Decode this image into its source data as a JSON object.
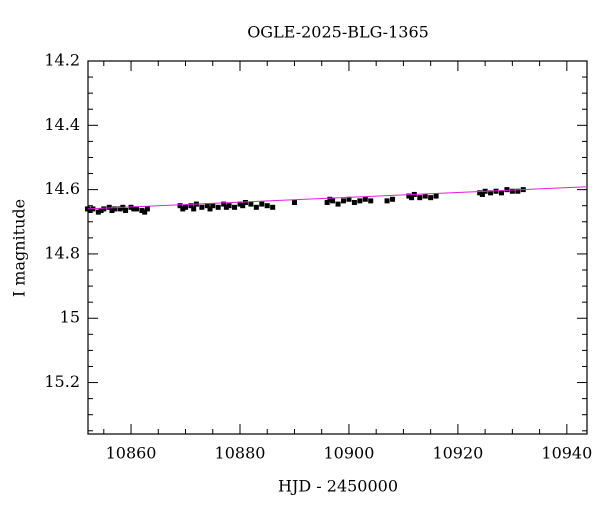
{
  "chart_data": {
    "type": "scatter",
    "title": "OGLE-2025-BLG-1365",
    "x_label": "HJD - 2450000",
    "y_label": "I magnitude",
    "xlim": [
      10852.1,
      10943.7
    ],
    "ylim": [
      14.2,
      15.36
    ],
    "y_inverted": true,
    "xticks": [
      10860,
      10880,
      10900,
      10920,
      10940
    ],
    "yticks": [
      14.2,
      14.4,
      14.6,
      14.8,
      15,
      15.2
    ],
    "xminorticks": [
      10855,
      10865,
      10870,
      10875,
      10885,
      10890,
      10895,
      10905,
      10910,
      10915,
      10925,
      10930,
      10935
    ],
    "yminorticks": [
      14.25,
      14.3,
      14.35,
      14.45,
      14.5,
      14.55,
      14.65,
      14.7,
      14.75,
      14.85,
      14.9,
      14.95,
      15.05,
      15.1,
      15.15,
      15.25,
      15.3,
      15.35
    ],
    "series": [
      {
        "type": "scatter",
        "color": "#000000",
        "x": [
          10852,
          10852.5,
          10853,
          10854,
          10854.5,
          10855,
          10856,
          10856.5,
          10857,
          10858,
          10858.5,
          10859,
          10860,
          10860.5,
          10861,
          10862,
          10862.5,
          10863,
          10869,
          10869.5,
          10870,
          10871,
          10871.5,
          10872,
          10873,
          10874,
          10874.5,
          10875,
          10876,
          10877,
          10877.5,
          10878,
          10879,
          10880,
          10880.5,
          10881,
          10882,
          10883,
          10884,
          10885,
          10886,
          10890,
          10896,
          10896.5,
          10897,
          10898,
          10899,
          10900,
          10901,
          10902,
          10903,
          10904,
          10907,
          10908,
          10911,
          10911.5,
          10912,
          10913,
          10914,
          10915,
          10916,
          10924,
          10924.5,
          10925,
          10926,
          10927,
          10928,
          10929,
          10930,
          10931,
          10932
        ],
        "values": [
          14.66,
          14.665,
          14.66,
          14.67,
          14.665,
          14.66,
          14.655,
          14.665,
          14.66,
          14.66,
          14.655,
          14.665,
          14.655,
          14.66,
          14.66,
          14.665,
          14.67,
          14.66,
          14.65,
          14.66,
          14.655,
          14.65,
          14.66,
          14.645,
          14.655,
          14.65,
          14.66,
          14.65,
          14.655,
          14.645,
          14.655,
          14.65,
          14.655,
          14.645,
          14.65,
          14.64,
          14.645,
          14.655,
          14.645,
          14.65,
          14.655,
          14.64,
          14.64,
          14.63,
          14.635,
          14.645,
          14.635,
          14.63,
          14.64,
          14.635,
          14.63,
          14.635,
          14.635,
          14.63,
          14.62,
          14.625,
          14.615,
          14.625,
          14.62,
          14.625,
          14.62,
          14.61,
          14.615,
          14.605,
          14.61,
          14.605,
          14.61,
          14.6,
          14.605,
          14.605,
          14.6
        ]
      },
      {
        "type": "line",
        "color": "#e020e0",
        "x": [
          10852.1,
          10943.7
        ],
        "values": [
          14.66,
          14.591
        ]
      }
    ]
  }
}
